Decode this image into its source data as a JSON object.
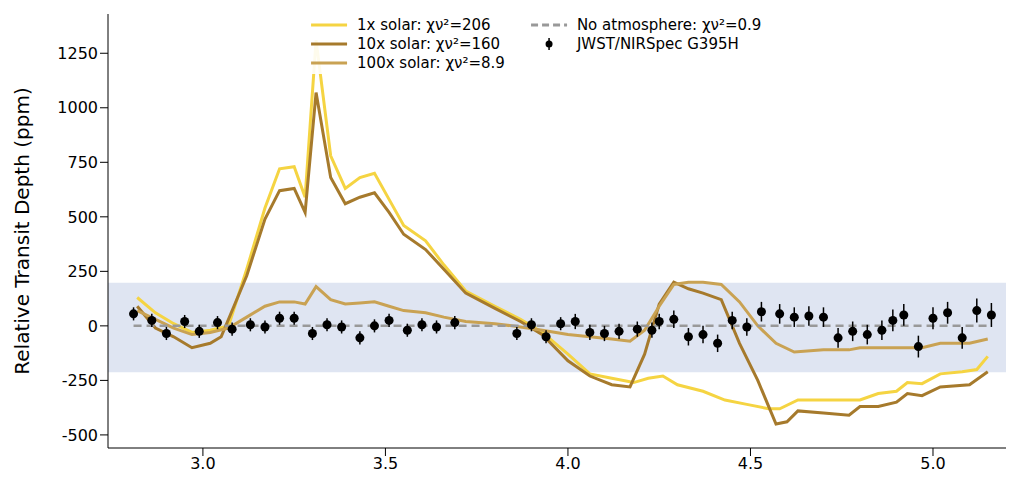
{
  "chart_data": {
    "type": "line",
    "y_label": "Relative Transit Depth (ppm)",
    "xlim": [
      2.74,
      5.2
    ],
    "ylim": [
      -560,
      1430
    ],
    "xticks": [
      {
        "value": 3,
        "label": "3.0"
      },
      {
        "value": 3.5,
        "label": "3.5"
      },
      {
        "value": 4,
        "label": "4.0"
      },
      {
        "value": 4.5,
        "label": "4.5"
      },
      {
        "value": 5,
        "label": "5.0"
      }
    ],
    "yticks": [
      -500,
      -250,
      0,
      250,
      500,
      750,
      1000,
      1250
    ],
    "shaded_band": [
      -213,
      198
    ],
    "legend": "upper center",
    "series": [
      {
        "name": "1x solar: χν²=206",
        "type": "line",
        "color": "#f5d442",
        "line_style": "solid",
        "x": [
          2.82,
          2.87,
          2.92,
          2.97,
          3.02,
          3.07,
          3.12,
          3.17,
          3.21,
          3.25,
          3.28,
          3.31,
          3.35,
          3.39,
          3.43,
          3.47,
          3.51,
          3.55,
          3.61,
          3.66,
          3.72,
          3.8,
          3.87,
          3.93,
          4.0,
          4.06,
          4.12,
          4.18,
          4.22,
          4.26,
          4.3,
          4.37,
          4.43,
          4.49,
          4.55,
          4.58,
          4.63,
          4.7,
          4.75,
          4.8,
          4.85,
          4.9,
          4.93,
          4.97,
          5.02,
          5.08,
          5.12,
          5.15
        ],
        "values": [
          130,
          60,
          10,
          -30,
          -20,
          0,
          260,
          540,
          720,
          730,
          590,
          1310,
          780,
          630,
          680,
          700,
          580,
          460,
          390,
          280,
          160,
          90,
          30,
          -30,
          -130,
          -220,
          -240,
          -260,
          -240,
          -230,
          -270,
          -300,
          -340,
          -360,
          -380,
          -380,
          -340,
          -340,
          -340,
          -340,
          -310,
          -300,
          -260,
          -265,
          -220,
          -210,
          -200,
          -140
        ]
      },
      {
        "name": "10x solar: χν²=160",
        "type": "line",
        "color": "#a67a2c",
        "line_style": "solid",
        "x": [
          2.82,
          2.87,
          2.92,
          2.97,
          3.02,
          3.05,
          3.12,
          3.17,
          3.21,
          3.25,
          3.28,
          3.31,
          3.35,
          3.39,
          3.43,
          3.47,
          3.51,
          3.55,
          3.61,
          3.66,
          3.72,
          3.8,
          3.87,
          3.93,
          4.0,
          4.06,
          4.12,
          4.17,
          4.21,
          4.25,
          4.29,
          4.33,
          4.37,
          4.42,
          4.47,
          4.52,
          4.57,
          4.6,
          4.63,
          4.7,
          4.77,
          4.8,
          4.85,
          4.9,
          4.93,
          4.97,
          5.02,
          5.1,
          5.15
        ],
        "values": [
          90,
          -10,
          -50,
          -100,
          -80,
          -50,
          230,
          490,
          620,
          630,
          520,
          1070,
          680,
          560,
          590,
          610,
          520,
          420,
          350,
          260,
          150,
          80,
          20,
          -40,
          -160,
          -230,
          -270,
          -280,
          -130,
          100,
          200,
          170,
          150,
          120,
          -80,
          -250,
          -450,
          -440,
          -390,
          -400,
          -410,
          -370,
          -370,
          -350,
          -310,
          -320,
          -280,
          -270,
          -210
        ]
      },
      {
        "name": "100x solar: χν²=8.9",
        "type": "line",
        "color": "#c9a253",
        "line_style": "solid",
        "x": [
          2.82,
          2.87,
          2.92,
          2.97,
          3.02,
          3.07,
          3.12,
          3.17,
          3.21,
          3.25,
          3.28,
          3.31,
          3.35,
          3.39,
          3.43,
          3.47,
          3.51,
          3.55,
          3.61,
          3.66,
          3.72,
          3.8,
          3.87,
          3.93,
          4.0,
          4.06,
          4.12,
          4.17,
          4.21,
          4.25,
          4.29,
          4.33,
          4.37,
          4.42,
          4.47,
          4.52,
          4.57,
          4.62,
          4.7,
          4.77,
          4.8,
          4.85,
          4.9,
          4.97,
          5.02,
          5.1,
          5.15
        ],
        "values": [
          70,
          30,
          -10,
          -40,
          -30,
          -10,
          40,
          90,
          110,
          110,
          100,
          180,
          120,
          100,
          105,
          110,
          90,
          70,
          60,
          40,
          20,
          10,
          -5,
          -20,
          -40,
          -50,
          -60,
          -70,
          -20,
          90,
          190,
          200,
          200,
          190,
          110,
          0,
          -80,
          -120,
          -110,
          -110,
          -100,
          -100,
          -100,
          -100,
          -80,
          -80,
          -60
        ]
      },
      {
        "name": "No atmosphere: χν²=0.9",
        "type": "line",
        "color": "#999999",
        "line_style": "dashed",
        "x": [
          2.81,
          5.16
        ],
        "values": [
          0,
          0
        ]
      },
      {
        "name": "JWST/NIRSpec G395H",
        "type": "scatter",
        "color": "#000000",
        "marker": "o",
        "x": [
          2.81,
          2.86,
          2.9,
          2.95,
          2.99,
          3.04,
          3.08,
          3.13,
          3.17,
          3.21,
          3.25,
          3.3,
          3.34,
          3.38,
          3.43,
          3.47,
          3.51,
          3.56,
          3.6,
          3.64,
          3.69,
          3.86,
          3.9,
          3.94,
          3.98,
          4.02,
          4.06,
          4.1,
          4.14,
          4.19,
          4.23,
          4.25,
          4.29,
          4.33,
          4.37,
          4.41,
          4.45,
          4.49,
          4.53,
          4.58,
          4.62,
          4.66,
          4.7,
          4.74,
          4.78,
          4.82,
          4.86,
          4.89,
          4.92,
          4.96,
          5.0,
          5.04,
          5.08,
          5.12,
          5.16
        ],
        "values": [
          55,
          25,
          -35,
          20,
          -25,
          15,
          -15,
          5,
          -5,
          35,
          35,
          -35,
          5,
          -5,
          -55,
          0,
          25,
          -20,
          5,
          -5,
          15,
          -35,
          5,
          -50,
          10,
          20,
          -30,
          -35,
          -25,
          -15,
          -20,
          20,
          30,
          -50,
          -40,
          -80,
          25,
          -5,
          65,
          55,
          40,
          45,
          40,
          -55,
          -25,
          -40,
          -20,
          25,
          50,
          -95,
          35,
          60,
          -55,
          70,
          50
        ],
        "errors": [
          30,
          30,
          30,
          30,
          30,
          30,
          30,
          30,
          30,
          30,
          30,
          30,
          30,
          30,
          30,
          30,
          30,
          30,
          30,
          30,
          30,
          30,
          30,
          30,
          30,
          35,
          35,
          35,
          35,
          35,
          35,
          35,
          40,
          40,
          40,
          40,
          40,
          40,
          45,
          45,
          45,
          45,
          45,
          45,
          45,
          45,
          45,
          50,
          50,
          50,
          50,
          50,
          50,
          55,
          55
        ]
      }
    ]
  }
}
